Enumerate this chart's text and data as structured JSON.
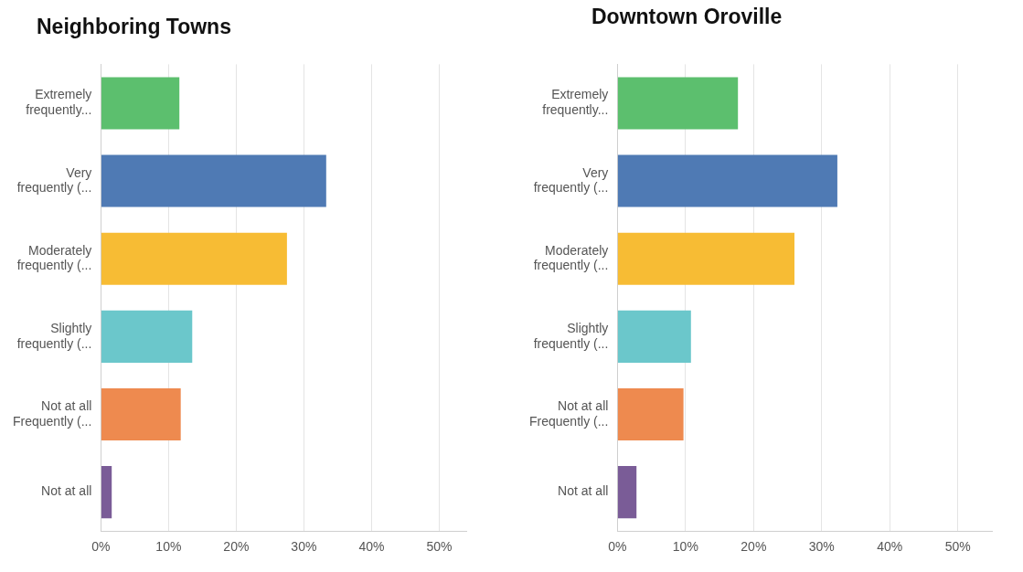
{
  "chart_data": [
    {
      "type": "bar",
      "orientation": "horizontal",
      "title": "Neighboring Towns",
      "categories": [
        "Extremely\nfrequently...",
        "Very\nfrequently (...",
        "Moderately\nfrequently (...",
        "Slightly\nfrequently (...",
        "Not at all\nFrequently (...",
        "Not at all"
      ],
      "values": [
        11.6,
        33.3,
        27.5,
        13.5,
        11.8,
        1.6
      ],
      "colors": [
        "#5cbf6e",
        "#4f7ab4",
        "#f7bc34",
        "#6bc7cb",
        "#ee8a4f",
        "#7a5c97"
      ],
      "xlim": [
        0,
        54
      ],
      "xticks": [
        {
          "value": 0,
          "label": "0%"
        },
        {
          "value": 10,
          "label": "10%"
        },
        {
          "value": 20,
          "label": "20%"
        },
        {
          "value": 30,
          "label": "30%"
        },
        {
          "value": 40,
          "label": "40%"
        },
        {
          "value": 50,
          "label": "50%"
        }
      ],
      "grid": "x",
      "legend": false
    },
    {
      "type": "bar",
      "orientation": "horizontal",
      "title": "Downtown Oroville",
      "categories": [
        "Extremely\nfrequently...",
        "Very\nfrequently (...",
        "Moderately\nfrequently (...",
        "Slightly\nfrequently (...",
        "Not at all\nFrequently (...",
        "Not at all"
      ],
      "values": [
        17.7,
        32.3,
        26.0,
        10.8,
        9.7,
        2.8
      ],
      "colors": [
        "#5cbf6e",
        "#4f7ab4",
        "#f7bc34",
        "#6bc7cb",
        "#ee8a4f",
        "#7a5c97"
      ],
      "xlim": [
        0,
        55
      ],
      "xticks": [
        {
          "value": 0,
          "label": "0%"
        },
        {
          "value": 10,
          "label": "10%"
        },
        {
          "value": 20,
          "label": "20%"
        },
        {
          "value": 30,
          "label": "30%"
        },
        {
          "value": 40,
          "label": "40%"
        },
        {
          "value": 50,
          "label": "50%"
        }
      ],
      "grid": "x",
      "legend": false
    }
  ]
}
